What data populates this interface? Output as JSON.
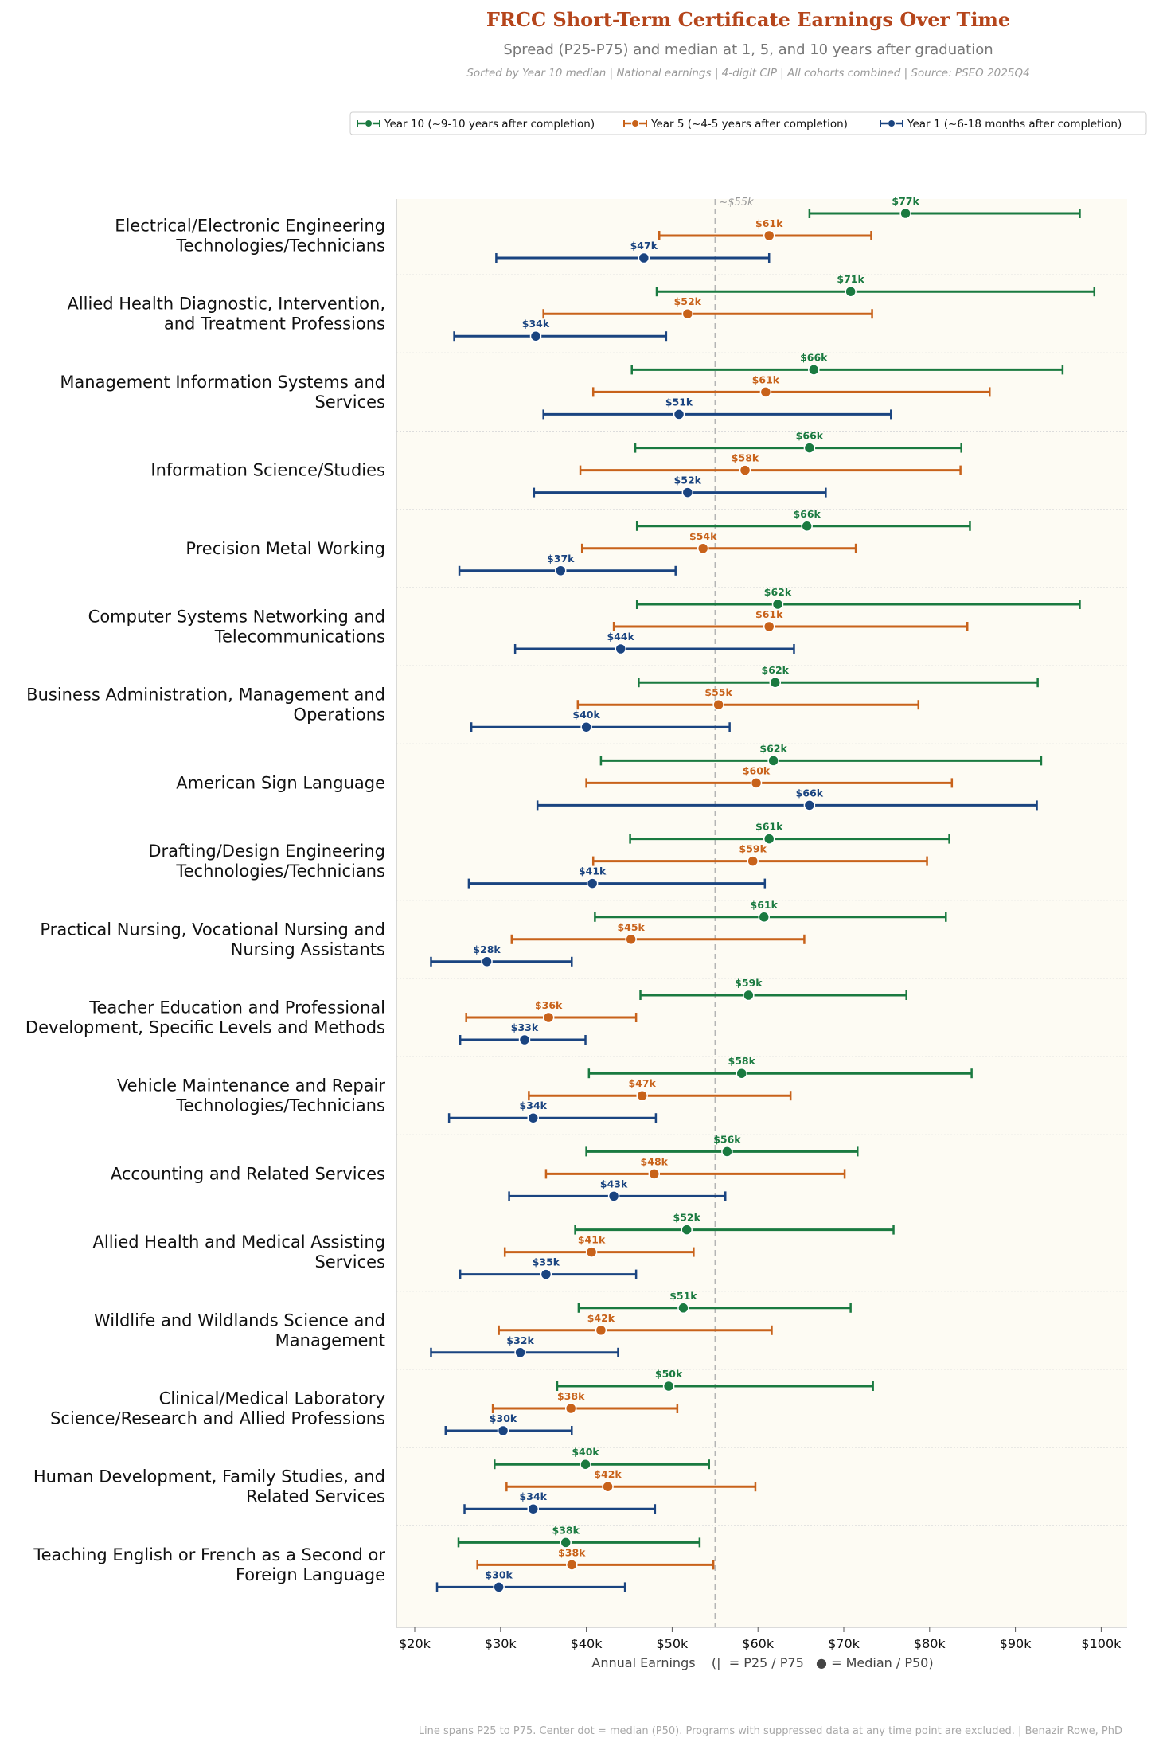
{
  "header": {
    "title": "FRCC Short-Term Certificate Earnings Over Time",
    "subtitle": "Spread (P25-P75) and median at 1, 5, and 10 years after graduation",
    "meta": "Sorted by Year 10 median  |  National earnings  |  4-digit CIP  |  All cohorts combined  |  Source: PSEO 2025Q4"
  },
  "footer": "Line spans P25 to P75. Center dot = median (P50). Programs with suppressed data at any time point are excluded.  |  Benazir Rowe, PhD",
  "chart_data": {
    "type": "dumbbell",
    "xlabel": "Annual Earnings    (|  = P25 / P75   ● = Median / P50)",
    "xlim": [
      18000,
      103000
    ],
    "xticks": [
      20000,
      30000,
      40000,
      50000,
      60000,
      70000,
      80000,
      90000,
      100000
    ],
    "xtick_labels": [
      "$20k",
      "$30k",
      "$40k",
      "$50k",
      "$60k",
      "$70k",
      "$80k",
      "$90k",
      "$100k"
    ],
    "reference_line": {
      "value": 55000,
      "label": "~$55k"
    },
    "grid": false,
    "legend_position": "top",
    "series": [
      {
        "key": "y10",
        "name": "Year 10 (~9-10 years after completion)",
        "color": "#1A7A40"
      },
      {
        "key": "y5",
        "name": "Year 5  (~4-5 years after completion)",
        "color": "#C8621A"
      },
      {
        "key": "y1",
        "name": "Year 1  (~6-18 months after completion)",
        "color": "#1A4480"
      }
    ],
    "programs": [
      {
        "label": [
          "Electrical/Electronic Engineering",
          "Technologies/Technicians"
        ],
        "y10": {
          "p25": 66000,
          "p50": 77200,
          "p75": 97500,
          "label": "$77k"
        },
        "y5": {
          "p25": 48500,
          "p50": 61300,
          "p75": 73200,
          "label": "$61k"
        },
        "y1": {
          "p25": 29500,
          "p50": 46700,
          "p75": 61300,
          "label": "$47k"
        }
      },
      {
        "label": [
          "Allied Health Diagnostic, Intervention,",
          "and Treatment Professions"
        ],
        "y10": {
          "p25": 48200,
          "p50": 70800,
          "p75": 99200,
          "label": "$71k"
        },
        "y5": {
          "p25": 35000,
          "p50": 51800,
          "p75": 73300,
          "label": "$52k"
        },
        "y1": {
          "p25": 24600,
          "p50": 34100,
          "p75": 49300,
          "label": "$34k"
        }
      },
      {
        "label": [
          "Management Information Systems and",
          "Services"
        ],
        "y10": {
          "p25": 45300,
          "p50": 66500,
          "p75": 95500,
          "label": "$66k"
        },
        "y5": {
          "p25": 40800,
          "p50": 60900,
          "p75": 87000,
          "label": "$61k"
        },
        "y1": {
          "p25": 35000,
          "p50": 50800,
          "p75": 75500,
          "label": "$51k"
        }
      },
      {
        "label": [
          "Information Science/Studies"
        ],
        "y10": {
          "p25": 45700,
          "p50": 66000,
          "p75": 83700,
          "label": "$66k"
        },
        "y5": {
          "p25": 39300,
          "p50": 58500,
          "p75": 83600,
          "label": "$58k"
        },
        "y1": {
          "p25": 33900,
          "p50": 51800,
          "p75": 67900,
          "label": "$52k"
        }
      },
      {
        "label": [
          "Precision Metal Working"
        ],
        "y10": {
          "p25": 45900,
          "p50": 65700,
          "p75": 84700,
          "label": "$66k"
        },
        "y5": {
          "p25": 39500,
          "p50": 53600,
          "p75": 71400,
          "label": "$54k"
        },
        "y1": {
          "p25": 25200,
          "p50": 37000,
          "p75": 50400,
          "label": "$37k"
        }
      },
      {
        "label": [
          "Computer Systems Networking and",
          "Telecommunications"
        ],
        "y10": {
          "p25": 45900,
          "p50": 62300,
          "p75": 97500,
          "label": "$62k"
        },
        "y5": {
          "p25": 43200,
          "p50": 61300,
          "p75": 84400,
          "label": "$61k"
        },
        "y1": {
          "p25": 31700,
          "p50": 44000,
          "p75": 64200,
          "label": "$44k"
        }
      },
      {
        "label": [
          "Business Administration, Management and",
          "Operations"
        ],
        "y10": {
          "p25": 46100,
          "p50": 62000,
          "p75": 92600,
          "label": "$62k"
        },
        "y5": {
          "p25": 39000,
          "p50": 55400,
          "p75": 78700,
          "label": "$55k"
        },
        "y1": {
          "p25": 26600,
          "p50": 40000,
          "p75": 56700,
          "label": "$40k"
        }
      },
      {
        "label": [
          "American Sign Language"
        ],
        "y10": {
          "p25": 41700,
          "p50": 61800,
          "p75": 93000,
          "label": "$62k"
        },
        "y5": {
          "p25": 40000,
          "p50": 59800,
          "p75": 82600,
          "label": "$60k"
        },
        "y1": {
          "p25": 34300,
          "p50": 66000,
          "p75": 92500,
          "label": "$66k"
        }
      },
      {
        "label": [
          "Drafting/Design Engineering",
          "Technologies/Technicians"
        ],
        "y10": {
          "p25": 45100,
          "p50": 61300,
          "p75": 82300,
          "label": "$61k"
        },
        "y5": {
          "p25": 40800,
          "p50": 59400,
          "p75": 79700,
          "label": "$59k"
        },
        "y1": {
          "p25": 26300,
          "p50": 40700,
          "p75": 60800,
          "label": "$41k"
        }
      },
      {
        "label": [
          "Practical Nursing, Vocational Nursing and",
          "Nursing Assistants"
        ],
        "y10": {
          "p25": 41000,
          "p50": 60700,
          "p75": 81900,
          "label": "$61k"
        },
        "y5": {
          "p25": 31300,
          "p50": 45200,
          "p75": 65400,
          "label": "$45k"
        },
        "y1": {
          "p25": 21900,
          "p50": 28400,
          "p75": 38300,
          "label": "$28k"
        }
      },
      {
        "label": [
          "Teacher Education and Professional",
          "Development, Specific Levels and Methods"
        ],
        "y10": {
          "p25": 46300,
          "p50": 58900,
          "p75": 77300,
          "label": "$59k"
        },
        "y5": {
          "p25": 26000,
          "p50": 35600,
          "p75": 45800,
          "label": "$36k"
        },
        "y1": {
          "p25": 25300,
          "p50": 32800,
          "p75": 39900,
          "label": "$33k"
        }
      },
      {
        "label": [
          "Vehicle Maintenance and Repair",
          "Technologies/Technicians"
        ],
        "y10": {
          "p25": 40300,
          "p50": 58100,
          "p75": 84900,
          "label": "$58k"
        },
        "y5": {
          "p25": 33300,
          "p50": 46500,
          "p75": 63800,
          "label": "$47k"
        },
        "y1": {
          "p25": 24000,
          "p50": 33800,
          "p75": 48100,
          "label": "$34k"
        }
      },
      {
        "label": [
          "Accounting and Related Services"
        ],
        "y10": {
          "p25": 40000,
          "p50": 56400,
          "p75": 71600,
          "label": "$56k"
        },
        "y5": {
          "p25": 35300,
          "p50": 47900,
          "p75": 70100,
          "label": "$48k"
        },
        "y1": {
          "p25": 31000,
          "p50": 43200,
          "p75": 56200,
          "label": "$43k"
        }
      },
      {
        "label": [
          "Allied Health and Medical Assisting",
          "Services"
        ],
        "y10": {
          "p25": 38700,
          "p50": 51700,
          "p75": 75800,
          "label": "$52k"
        },
        "y5": {
          "p25": 30500,
          "p50": 40600,
          "p75": 52500,
          "label": "$41k"
        },
        "y1": {
          "p25": 25300,
          "p50": 35300,
          "p75": 45800,
          "label": "$35k"
        }
      },
      {
        "label": [
          "Wildlife and Wildlands Science and",
          "Management"
        ],
        "y10": {
          "p25": 39100,
          "p50": 51300,
          "p75": 70800,
          "label": "$51k"
        },
        "y5": {
          "p25": 29800,
          "p50": 41700,
          "p75": 61600,
          "label": "$42k"
        },
        "y1": {
          "p25": 21900,
          "p50": 32300,
          "p75": 43700,
          "label": "$32k"
        }
      },
      {
        "label": [
          "Clinical/Medical Laboratory",
          "Science/Research and Allied Professions"
        ],
        "y10": {
          "p25": 36600,
          "p50": 49600,
          "p75": 73400,
          "label": "$50k"
        },
        "y5": {
          "p25": 29100,
          "p50": 38200,
          "p75": 50600,
          "label": "$38k"
        },
        "y1": {
          "p25": 23600,
          "p50": 30300,
          "p75": 38300,
          "label": "$30k"
        }
      },
      {
        "label": [
          "Human Development, Family Studies, and",
          "Related Services"
        ],
        "y10": {
          "p25": 29300,
          "p50": 39900,
          "p75": 54300,
          "label": "$40k"
        },
        "y5": {
          "p25": 30700,
          "p50": 42500,
          "p75": 59700,
          "label": "$42k"
        },
        "y1": {
          "p25": 25800,
          "p50": 33800,
          "p75": 48000,
          "label": "$34k"
        }
      },
      {
        "label": [
          "Teaching English or French as a Second or",
          "Foreign Language"
        ],
        "y10": {
          "p25": 25100,
          "p50": 37600,
          "p75": 53200,
          "label": "$38k"
        },
        "y5": {
          "p25": 27300,
          "p50": 38300,
          "p75": 54800,
          "label": "$38k"
        },
        "y1": {
          "p25": 22600,
          "p50": 29800,
          "p75": 44500,
          "label": "$30k"
        }
      }
    ]
  }
}
